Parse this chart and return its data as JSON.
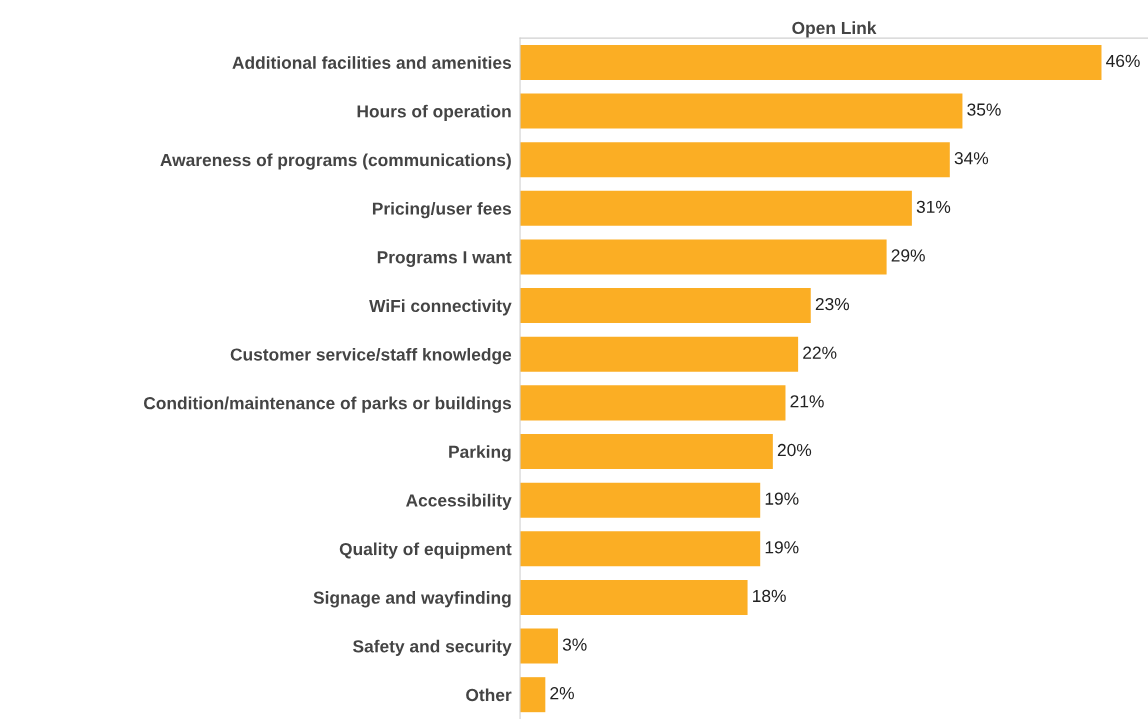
{
  "chart_data": {
    "type": "bar",
    "orientation": "horizontal",
    "title": "Open Link",
    "tick_labels": "y",
    "categories": [
      "Additional facilities and amenities",
      "Hours of operation",
      "Awareness of programs (communications)",
      "Pricing/user fees",
      "Programs I want",
      "WiFi connectivity",
      "Customer service/staff knowledge",
      "Condition/maintenance of parks or buildings",
      "Parking",
      "Accessibility",
      "Quality of equipment",
      "Signage and wayfinding",
      "Safety and security",
      "Other"
    ],
    "values": [
      46,
      35,
      34,
      31,
      29,
      23,
      22,
      21,
      20,
      19,
      19,
      18,
      3,
      2
    ],
    "value_labels": [
      "46%",
      "35%",
      "34%",
      "31%",
      "29%",
      "23%",
      "22%",
      "21%",
      "20%",
      "19%",
      "19%",
      "18%",
      "3%",
      "2%"
    ],
    "color": "#fbae24",
    "grid": false,
    "legend": false
  }
}
